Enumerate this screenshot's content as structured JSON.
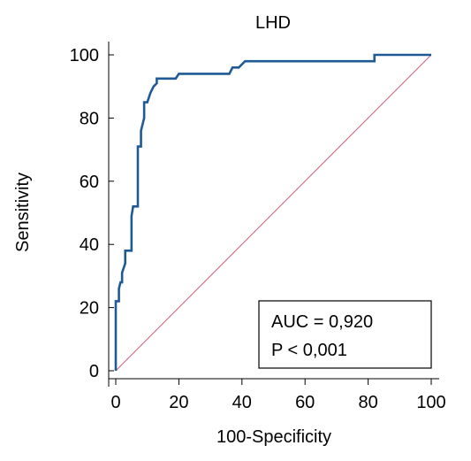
{
  "chart_data": {
    "type": "line",
    "title": "LHD",
    "xlabel": "100-Specificity",
    "ylabel": "Sensitivity",
    "xlim": [
      0,
      100
    ],
    "ylim": [
      0,
      100
    ],
    "x_ticks": [
      0,
      20,
      40,
      60,
      80,
      100
    ],
    "y_ticks": [
      0,
      20,
      40,
      60,
      80,
      100
    ],
    "x_tick_labels": [
      "0",
      "20",
      "40",
      "60",
      "80",
      "100"
    ],
    "y_tick_labels": [
      "0",
      "20",
      "40",
      "60",
      "80",
      "100"
    ],
    "grid": false,
    "series": [
      {
        "kind": "roc-curve",
        "color": "#1f5a96",
        "points": [
          [
            0,
            0
          ],
          [
            0,
            22
          ],
          [
            1,
            22
          ],
          [
            1,
            26
          ],
          [
            1.5,
            28
          ],
          [
            2,
            28
          ],
          [
            2,
            31
          ],
          [
            3,
            34
          ],
          [
            3,
            38
          ],
          [
            5,
            38
          ],
          [
            5,
            49
          ],
          [
            5.5,
            52
          ],
          [
            7,
            52
          ],
          [
            7,
            71
          ],
          [
            8,
            71
          ],
          [
            8,
            76
          ],
          [
            9,
            80
          ],
          [
            9,
            85
          ],
          [
            10,
            85
          ],
          [
            11,
            88
          ],
          [
            12,
            90
          ],
          [
            13,
            91
          ],
          [
            13,
            92.5
          ],
          [
            19,
            92.5
          ],
          [
            20,
            94
          ],
          [
            36,
            94
          ],
          [
            37,
            96
          ],
          [
            39,
            96
          ],
          [
            41,
            98
          ],
          [
            82,
            98
          ],
          [
            82,
            100
          ],
          [
            100,
            100
          ]
        ]
      },
      {
        "kind": "reference-diagonal",
        "color": "#c8607a",
        "points": [
          [
            0,
            0
          ],
          [
            100,
            100
          ]
        ]
      }
    ],
    "annotations": {
      "auc_text": "AUC = 0,920",
      "p_text": "P < 0,001"
    }
  }
}
